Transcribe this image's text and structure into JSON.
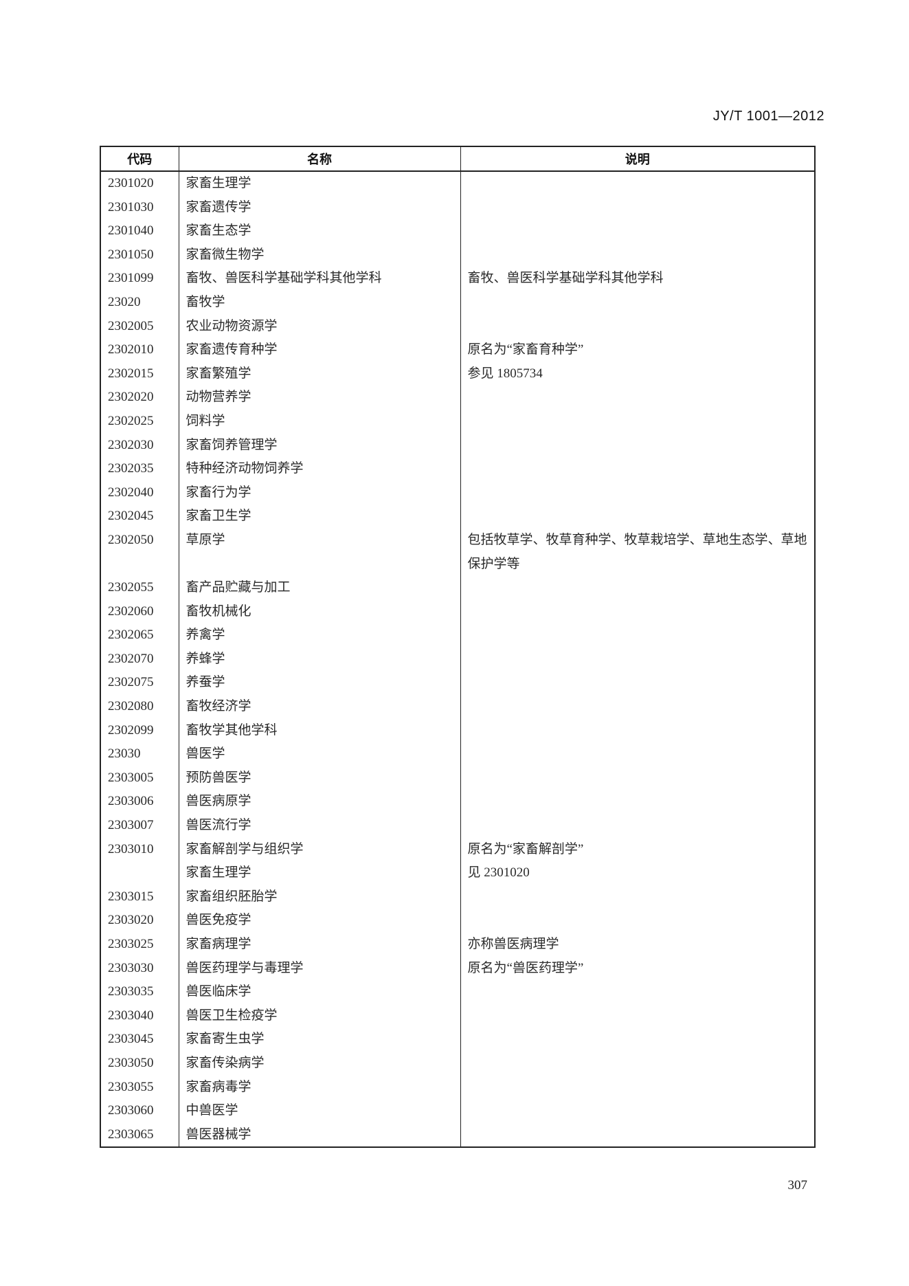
{
  "header": {
    "standard_number": "JY/T 1001—2012"
  },
  "table": {
    "columns": [
      "代码",
      "名称",
      "说明"
    ],
    "rows": [
      {
        "code": "2301020",
        "name": "家畜生理学",
        "note": ""
      },
      {
        "code": "2301030",
        "name": "家畜遗传学",
        "note": ""
      },
      {
        "code": "2301040",
        "name": "家畜生态学",
        "note": ""
      },
      {
        "code": "2301050",
        "name": "家畜微生物学",
        "note": ""
      },
      {
        "code": "2301099",
        "name": "畜牧、兽医科学基础学科其他学科",
        "note": "畜牧、兽医科学基础学科其他学科"
      },
      {
        "code": "23020",
        "name": "畜牧学",
        "note": ""
      },
      {
        "code": "2302005",
        "name": "农业动物资源学",
        "note": ""
      },
      {
        "code": "2302010",
        "name": "家畜遗传育种学",
        "note": "原名为“家畜育种学”"
      },
      {
        "code": "2302015",
        "name": "家畜繁殖学",
        "note": "参见 1805734"
      },
      {
        "code": "2302020",
        "name": "动物营养学",
        "note": ""
      },
      {
        "code": "2302025",
        "name": "饲料学",
        "note": ""
      },
      {
        "code": "2302030",
        "name": "家畜饲养管理学",
        "note": ""
      },
      {
        "code": "2302035",
        "name": "特种经济动物饲养学",
        "note": ""
      },
      {
        "code": "2302040",
        "name": "家畜行为学",
        "note": ""
      },
      {
        "code": "2302045",
        "name": "家畜卫生学",
        "note": ""
      },
      {
        "code": "2302050",
        "name": "草原学",
        "note": "包括牧草学、牧草育种学、牧草栽培学、草地生态学、草地保护学等"
      },
      {
        "code": "2302055",
        "name": "畜产品贮藏与加工",
        "note": ""
      },
      {
        "code": "2302060",
        "name": "畜牧机械化",
        "note": ""
      },
      {
        "code": "2302065",
        "name": "养禽学",
        "note": ""
      },
      {
        "code": "2302070",
        "name": "养蜂学",
        "note": ""
      },
      {
        "code": "2302075",
        "name": "养蚕学",
        "note": ""
      },
      {
        "code": "2302080",
        "name": "畜牧经济学",
        "note": ""
      },
      {
        "code": "2302099",
        "name": "畜牧学其他学科",
        "note": ""
      },
      {
        "code": "23030",
        "name": "兽医学",
        "note": ""
      },
      {
        "code": "2303005",
        "name": "预防兽医学",
        "note": ""
      },
      {
        "code": "2303006",
        "name": "兽医病原学",
        "note": ""
      },
      {
        "code": "2303007",
        "name": "兽医流行学",
        "note": ""
      },
      {
        "code": "2303010",
        "name": "家畜解剖学与组织学",
        "note": "原名为“家畜解剖学”"
      },
      {
        "code": "",
        "name": "家畜生理学",
        "note": "见 2301020"
      },
      {
        "code": "2303015",
        "name": "家畜组织胚胎学",
        "note": ""
      },
      {
        "code": "2303020",
        "name": "兽医免疫学",
        "note": ""
      },
      {
        "code": "2303025",
        "name": "家畜病理学",
        "note": "亦称兽医病理学"
      },
      {
        "code": "2303030",
        "name": "兽医药理学与毒理学",
        "note": "原名为“兽医药理学”"
      },
      {
        "code": "2303035",
        "name": "兽医临床学",
        "note": ""
      },
      {
        "code": "2303040",
        "name": "兽医卫生检疫学",
        "note": ""
      },
      {
        "code": "2303045",
        "name": "家畜寄生虫学",
        "note": ""
      },
      {
        "code": "2303050",
        "name": "家畜传染病学",
        "note": ""
      },
      {
        "code": "2303055",
        "name": "家畜病毒学",
        "note": ""
      },
      {
        "code": "2303060",
        "name": "中兽医学",
        "note": ""
      },
      {
        "code": "2303065",
        "name": "兽医器械学",
        "note": ""
      }
    ]
  },
  "footer": {
    "page_number": "307"
  }
}
